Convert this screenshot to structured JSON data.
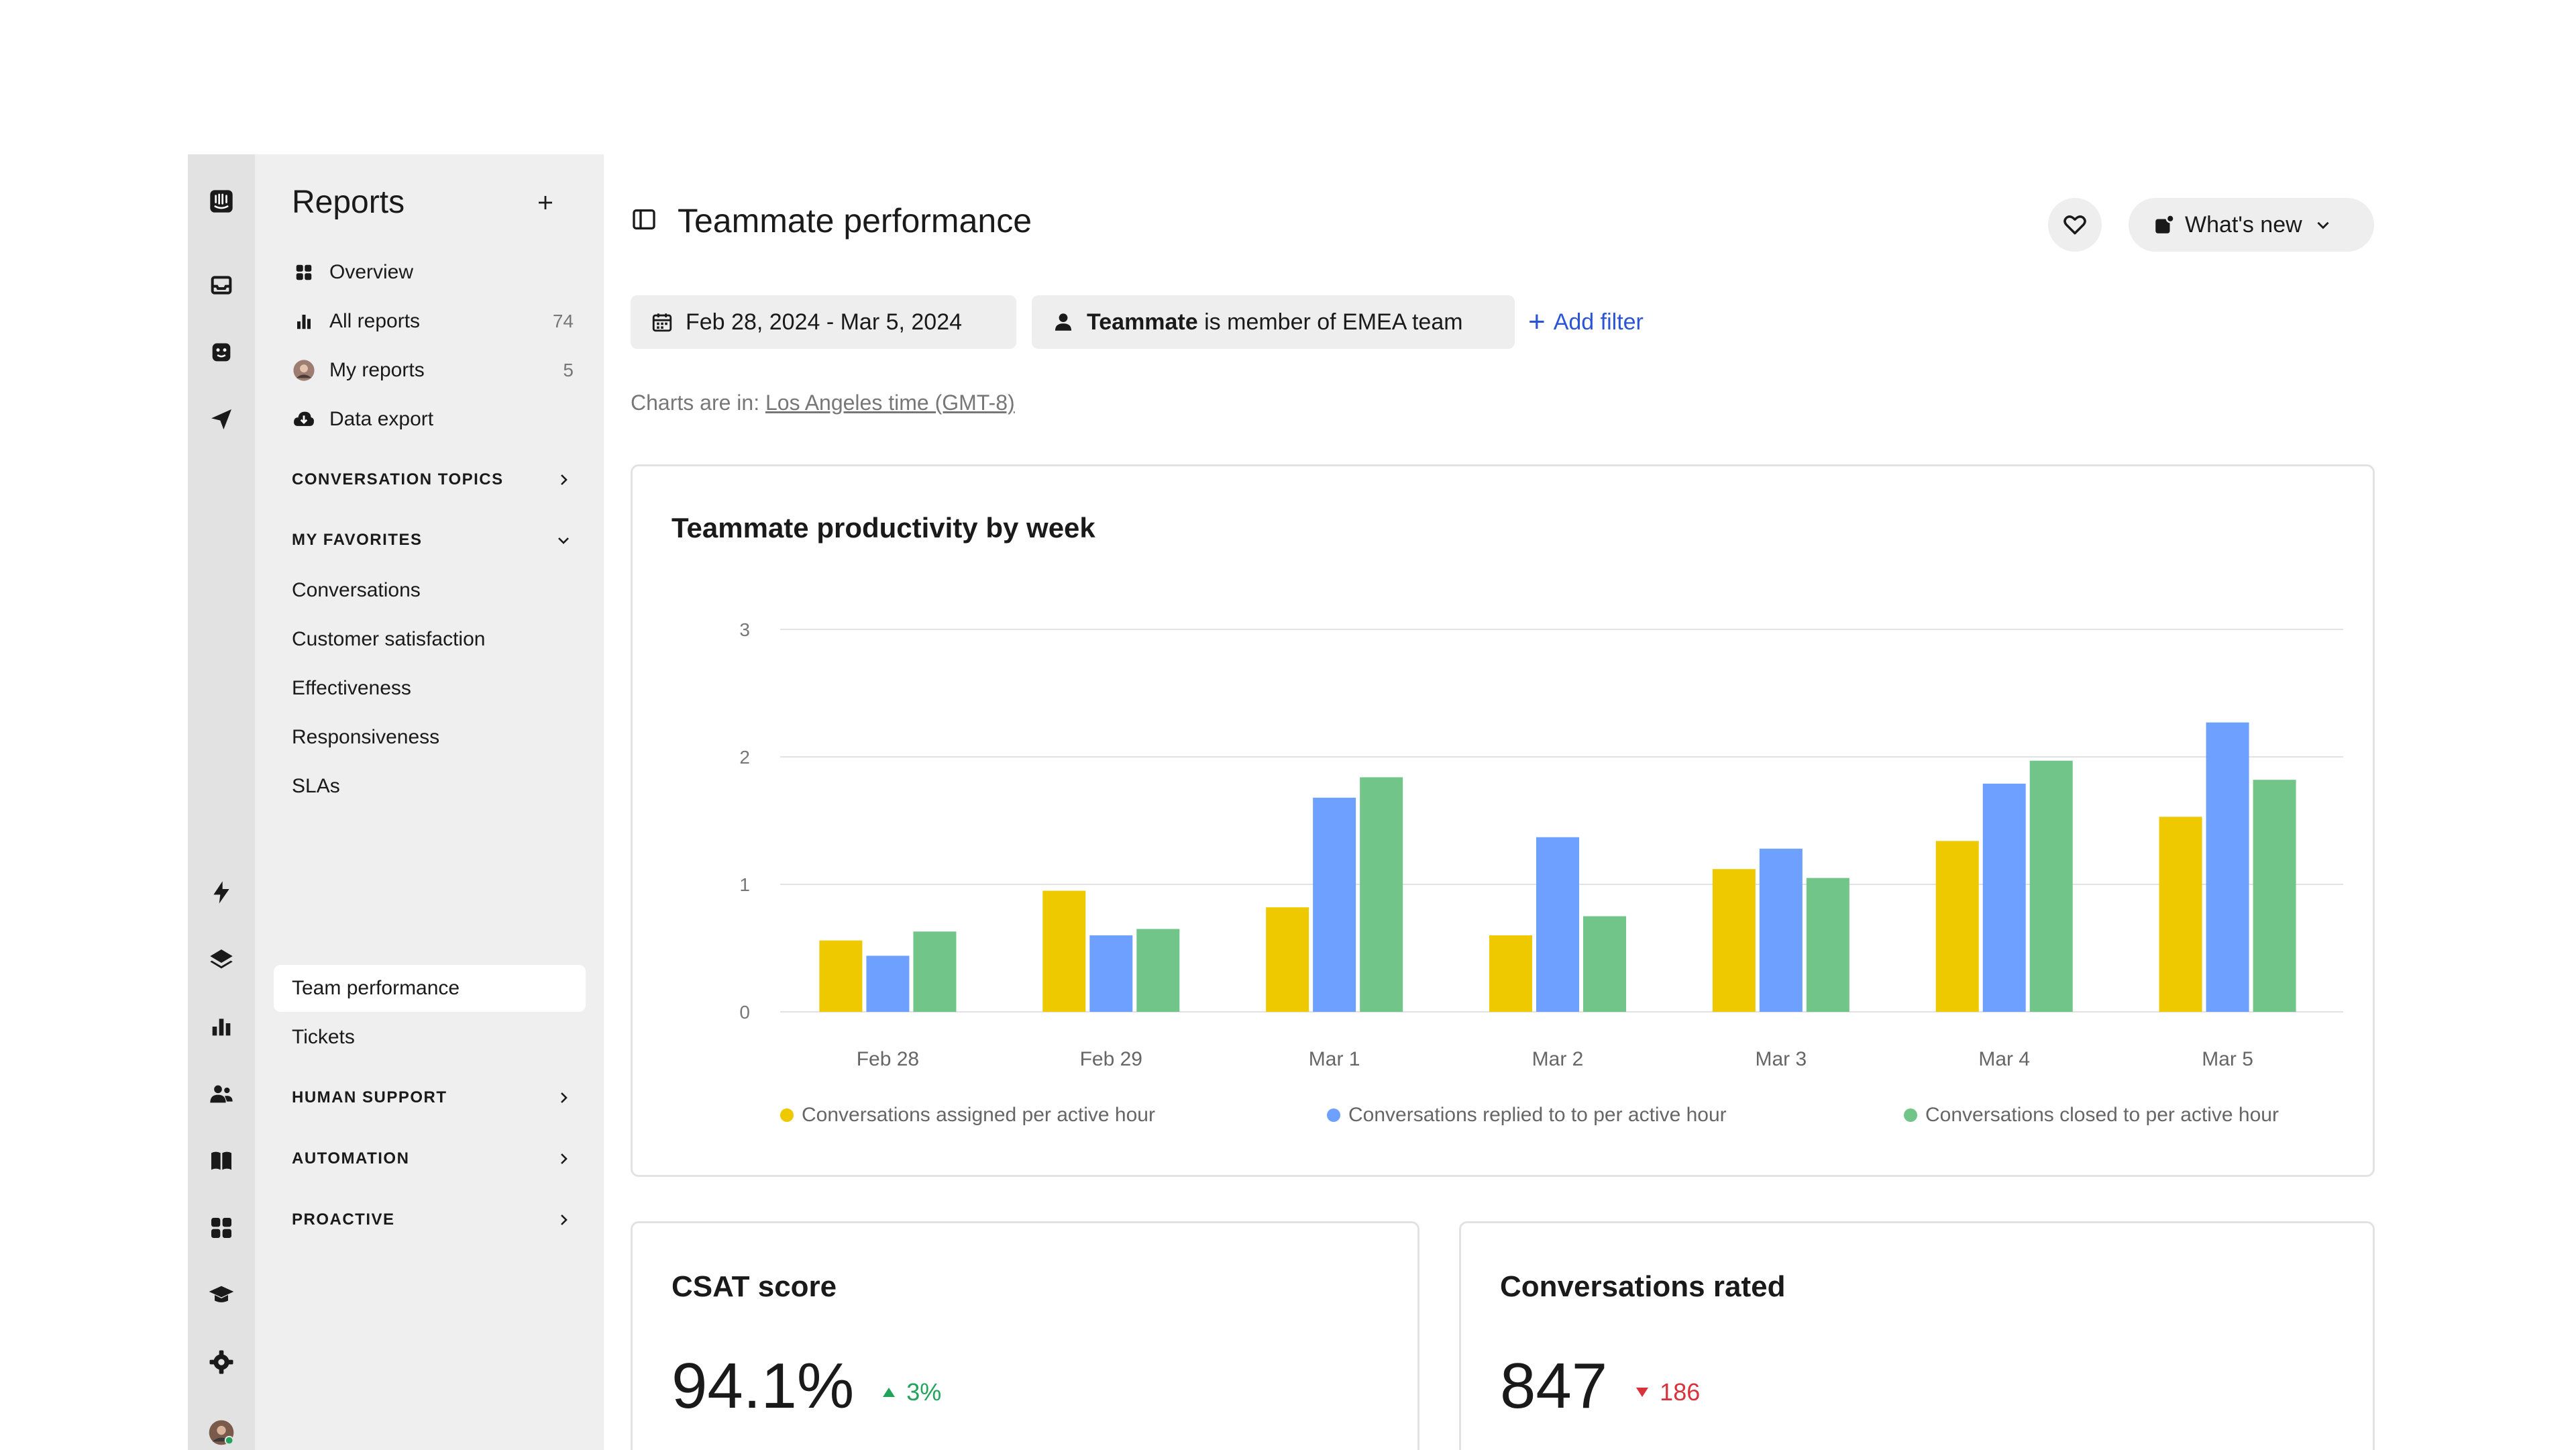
{
  "sidebar": {
    "title": "Reports",
    "nav": [
      {
        "label": "Overview",
        "icon": "grid-icon"
      },
      {
        "label": "All reports",
        "icon": "bar-chart-icon",
        "count": "74"
      },
      {
        "label": "My reports",
        "icon": "avatar-icon",
        "count": "5"
      },
      {
        "label": "Data export",
        "icon": "cloud-download-icon"
      }
    ],
    "sections": {
      "conversation_topics": "CONVERSATION TOPICS",
      "my_favorites": "MY FAVORITES",
      "human_support": "HUMAN SUPPORT",
      "automation": "AUTOMATION",
      "proactive": "PROACTIVE"
    },
    "favorites": [
      "Conversations",
      "Customer satisfaction",
      "Effectiveness",
      "Responsiveness",
      "SLAs",
      "Team performance",
      "Tickets"
    ],
    "active_favorite": "Team performance"
  },
  "header": {
    "title": "Teammate performance",
    "whats_new": "What's new"
  },
  "filters": {
    "date_range": "Feb 28, 2024 - Mar 5, 2024",
    "team_bold": "Teammate",
    "team_rest": " is member of EMEA team",
    "add_filter": "Add filter"
  },
  "timezone": {
    "prefix": "Charts are in: ",
    "link": "Los Angeles time (GMT-8)"
  },
  "chart_data": {
    "type": "bar",
    "title": "Teammate productivity by week",
    "categories": [
      "Feb 28",
      "Feb 29",
      "Mar 1",
      "Mar 2",
      "Mar 3",
      "Mar 4",
      "Mar 5"
    ],
    "series": [
      {
        "name": "Conversations assigned per active hour",
        "color": "#efc900",
        "values": [
          0.56,
          0.95,
          0.82,
          0.6,
          1.12,
          1.34,
          1.53
        ]
      },
      {
        "name": "Conversations replied to to per active hour",
        "color": "#6ea1ff",
        "values": [
          0.44,
          0.6,
          1.68,
          1.37,
          1.28,
          1.79,
          2.27
        ]
      },
      {
        "name": "Conversations closed to per active hour",
        "color": "#72c588",
        "values": [
          0.63,
          0.65,
          1.84,
          0.75,
          1.05,
          1.97,
          1.82
        ]
      }
    ],
    "ylim": [
      0,
      3
    ],
    "yticks": [
      "0",
      "1",
      "2",
      "3"
    ],
    "grid": true,
    "legend": "bottom"
  },
  "kpis": {
    "csat": {
      "title": "CSAT score",
      "value": "94.1%",
      "delta": "3%",
      "direction": "up",
      "color": "#22a35a"
    },
    "rated": {
      "title": "Conversations rated",
      "value": "847",
      "delta": "186",
      "direction": "down",
      "color": "#d8323c"
    }
  }
}
